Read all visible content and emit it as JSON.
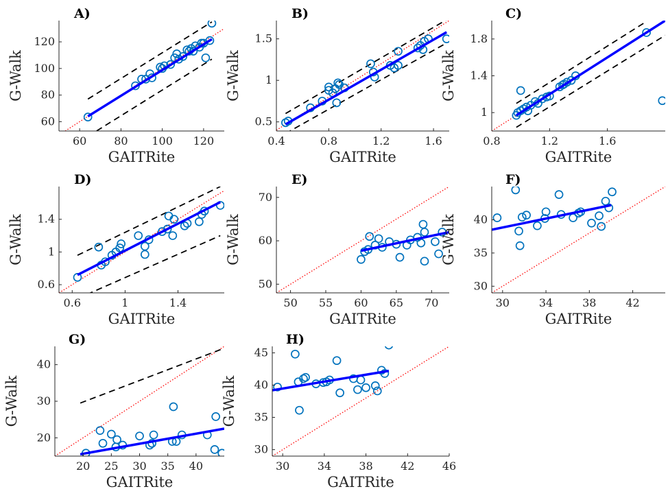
{
  "chart_data": [
    {
      "type": "scatter",
      "panel_label": "A)",
      "xlabel": "GAITRite",
      "ylabel": "G-Walk",
      "xlim": [
        50,
        130
      ],
      "ylim": [
        53,
        136
      ],
      "xticks": [
        60,
        80,
        100,
        120
      ],
      "xtick_labels": [
        "60",
        "80",
        "100",
        "120"
      ],
      "yticks": [
        60,
        80,
        100,
        120
      ],
      "ytick_labels": [
        "60",
        "80",
        "100",
        "120"
      ],
      "points": [
        [
          64,
          63.5
        ],
        [
          87,
          87
        ],
        [
          90,
          92
        ],
        [
          92,
          92
        ],
        [
          94,
          96
        ],
        [
          95,
          93
        ],
        [
          99,
          101
        ],
        [
          100,
          100
        ],
        [
          101,
          102
        ],
        [
          104,
          103
        ],
        [
          106,
          108
        ],
        [
          107,
          111
        ],
        [
          108,
          107
        ],
        [
          110,
          109
        ],
        [
          112,
          114
        ],
        [
          113,
          113
        ],
        [
          114,
          115
        ],
        [
          115,
          113
        ],
        [
          116,
          117
        ],
        [
          118,
          116
        ],
        [
          119,
          119
        ],
        [
          120,
          119
        ],
        [
          121,
          108
        ],
        [
          123,
          121
        ],
        [
          124,
          134
        ]
      ],
      "fit": [
        [
          64,
          64
        ],
        [
          124,
          122
        ]
      ],
      "identity": true,
      "loa": [
        [
          [
            64,
            77
          ],
          [
            124,
            135
          ]
        ],
        [
          [
            64,
            49
          ],
          [
            124,
            107
          ]
        ]
      ]
    },
    {
      "type": "scatter",
      "panel_label": "B)",
      "xlabel": "GAITRite",
      "ylabel": "G-Walk",
      "xlim": [
        0.4,
        1.72
      ],
      "ylim": [
        0.39,
        1.72
      ],
      "xticks": [
        0.4,
        0.8,
        1.2,
        1.6
      ],
      "xtick_labels": [
        "0.4",
        "0.8",
        "1.2",
        "1.6"
      ],
      "yticks": [
        0.5,
        1.0,
        1.5
      ],
      "ytick_labels": [
        "0.5",
        "1",
        "1.5"
      ],
      "points": [
        [
          0.47,
          0.49
        ],
        [
          0.49,
          0.51
        ],
        [
          0.66,
          0.67
        ],
        [
          0.75,
          0.75
        ],
        [
          0.8,
          0.88
        ],
        [
          0.8,
          0.92
        ],
        [
          0.83,
          0.85
        ],
        [
          0.85,
          0.9
        ],
        [
          0.86,
          0.73
        ],
        [
          0.87,
          0.97
        ],
        [
          0.88,
          0.95
        ],
        [
          0.92,
          0.91
        ],
        [
          1.12,
          1.2
        ],
        [
          1.14,
          1.1
        ],
        [
          1.15,
          1.04
        ],
        [
          1.27,
          1.18
        ],
        [
          1.3,
          1.15
        ],
        [
          1.33,
          1.35
        ],
        [
          1.33,
          1.18
        ],
        [
          1.48,
          1.39
        ],
        [
          1.5,
          1.42
        ],
        [
          1.52,
          1.37
        ],
        [
          1.53,
          1.47
        ],
        [
          1.56,
          1.5
        ],
        [
          1.7,
          1.5
        ]
      ],
      "fit": [
        [
          0.47,
          0.47
        ],
        [
          1.7,
          1.58
        ]
      ],
      "identity": true,
      "loa": [
        [
          [
            0.47,
            0.6
          ],
          [
            1.7,
            1.73
          ]
        ],
        [
          [
            0.47,
            0.36
          ],
          [
            1.7,
            1.45
          ]
        ]
      ]
    },
    {
      "type": "scatter",
      "panel_label": "C)",
      "xlabel": "GAITRite",
      "ylabel": "G-Walk",
      "xlim": [
        0.8,
        2.0
      ],
      "ylim": [
        0.8,
        2.0
      ],
      "xticks": [
        0.8,
        1.2,
        1.6
      ],
      "xtick_labels": [
        "0.8",
        "1.2",
        "1.6"
      ],
      "yticks": [
        1.0,
        1.4,
        1.8
      ],
      "ytick_labels": [
        "1",
        "1.4",
        "1.8"
      ],
      "points": [
        [
          0.97,
          0.97
        ],
        [
          0.98,
          1.0
        ],
        [
          1.0,
          1.24
        ],
        [
          1.0,
          1.02
        ],
        [
          1.02,
          1.04
        ],
        [
          1.04,
          1.06
        ],
        [
          1.05,
          1.02
        ],
        [
          1.07,
          1.08
        ],
        [
          1.1,
          1.12
        ],
        [
          1.12,
          1.1
        ],
        [
          1.15,
          1.15
        ],
        [
          1.18,
          1.17
        ],
        [
          1.2,
          1.18
        ],
        [
          1.27,
          1.28
        ],
        [
          1.29,
          1.3
        ],
        [
          1.3,
          1.31
        ],
        [
          1.32,
          1.33
        ],
        [
          1.35,
          1.35
        ],
        [
          1.38,
          1.4
        ],
        [
          1.87,
          1.87
        ],
        [
          1.98,
          1.13
        ]
      ],
      "fit": [
        [
          0.97,
          0.97
        ],
        [
          2.0,
          2.0
        ]
      ],
      "identity": true,
      "loa": [
        [
          [
            0.97,
            1.1
          ],
          [
            1.87,
            1.99
          ]
        ],
        [
          [
            0.97,
            0.84
          ],
          [
            2.0,
            1.84
          ]
        ]
      ]
    },
    {
      "type": "scatter",
      "panel_label": "D)",
      "xlabel": "GAITRite",
      "ylabel": "G-Walk",
      "xlim": [
        0.5,
        1.75
      ],
      "ylim": [
        0.5,
        1.8
      ],
      "xticks": [
        0.6,
        1.0,
        1.4
      ],
      "xtick_labels": [
        "0.6",
        "1",
        "1.4"
      ],
      "yticks": [
        0.6,
        1.0,
        1.4
      ],
      "ytick_labels": [
        "0.6",
        "1",
        "1.4"
      ],
      "points": [
        [
          0.64,
          0.69
        ],
        [
          0.8,
          1.06
        ],
        [
          0.82,
          0.84
        ],
        [
          0.85,
          0.88
        ],
        [
          0.9,
          0.96
        ],
        [
          0.93,
          1.0
        ],
        [
          0.96,
          1.05
        ],
        [
          0.97,
          1.1
        ],
        [
          1.1,
          1.2
        ],
        [
          1.15,
          0.97
        ],
        [
          1.15,
          1.07
        ],
        [
          1.18,
          1.15
        ],
        [
          1.28,
          1.25
        ],
        [
          1.32,
          1.28
        ],
        [
          1.33,
          1.44
        ],
        [
          1.36,
          1.2
        ],
        [
          1.37,
          1.4
        ],
        [
          1.45,
          1.32
        ],
        [
          1.47,
          1.35
        ],
        [
          1.56,
          1.37
        ],
        [
          1.58,
          1.46
        ],
        [
          1.6,
          1.5
        ],
        [
          1.72,
          1.57
        ]
      ],
      "fit": [
        [
          0.64,
          0.72
        ],
        [
          1.72,
          1.61
        ]
      ],
      "identity": true,
      "loa": [
        [
          [
            0.64,
            0.96
          ],
          [
            1.72,
            1.8
          ]
        ],
        [
          [
            0.64,
            0.43
          ],
          [
            1.72,
            1.2
          ]
        ]
      ]
    },
    {
      "type": "scatter",
      "panel_label": "E)",
      "xlabel": "GAITRite",
      "ylabel": "G-Walk",
      "xlim": [
        48,
        72.5
      ],
      "ylim": [
        48,
        72.5
      ],
      "xticks": [
        50,
        55,
        60,
        65,
        70
      ],
      "xtick_labels": [
        "50",
        "55",
        "60",
        "65",
        "70"
      ],
      "yticks": [
        50,
        60,
        70
      ],
      "ytick_labels": [
        "50",
        "60",
        "70"
      ],
      "points": [
        [
          60,
          55.7
        ],
        [
          60.5,
          57.5
        ],
        [
          61,
          58
        ],
        [
          61.2,
          61
        ],
        [
          62,
          59
        ],
        [
          62.5,
          60.5
        ],
        [
          63,
          58.5
        ],
        [
          64,
          59.8
        ],
        [
          65,
          59.2
        ],
        [
          65.5,
          56.2
        ],
        [
          66.5,
          59
        ],
        [
          67,
          60.2
        ],
        [
          68,
          60.8
        ],
        [
          68.5,
          59.5
        ],
        [
          68.8,
          63.8
        ],
        [
          69,
          55.3
        ],
        [
          69,
          62
        ],
        [
          70.5,
          59.8
        ],
        [
          71,
          57
        ],
        [
          71.5,
          62
        ]
      ],
      "fit": [
        [
          60,
          57.7
        ],
        [
          72.5,
          62
        ]
      ],
      "identity": true,
      "loa": []
    },
    {
      "type": "scatter",
      "panel_label": "F)",
      "xlabel": "GAITRite",
      "ylabel": "G-Walk",
      "xlim": [
        29,
        45
      ],
      "ylim": [
        29,
        45
      ],
      "xticks": [
        30,
        34,
        38,
        42
      ],
      "xtick_labels": [
        "30",
        "34",
        "38",
        "42"
      ],
      "yticks": [
        30,
        35,
        40
      ],
      "ytick_labels": [
        "30",
        "35",
        "40"
      ],
      "points": [
        [
          29.5,
          40.3
        ],
        [
          31.2,
          44.5
        ],
        [
          31.5,
          38.3
        ],
        [
          31.6,
          36.1
        ],
        [
          31.8,
          40.4
        ],
        [
          32.2,
          40.7
        ],
        [
          33.2,
          39.1
        ],
        [
          33.9,
          40.2
        ],
        [
          34,
          41.2
        ],
        [
          35.2,
          43.8
        ],
        [
          35.4,
          40.8
        ],
        [
          36.5,
          40.3
        ],
        [
          37,
          41
        ],
        [
          37.2,
          41.2
        ],
        [
          38.2,
          39.5
        ],
        [
          38.9,
          40.6
        ],
        [
          39.1,
          39
        ],
        [
          39.5,
          42.8
        ],
        [
          39.8,
          41.8
        ],
        [
          40.1,
          44.2
        ]
      ],
      "fit": [
        [
          29,
          38.5
        ],
        [
          40,
          42.2
        ]
      ],
      "identity": true,
      "loa": []
    },
    {
      "type": "scatter",
      "panel_label": "G)",
      "xlabel": "GAITRite",
      "ylabel": "G-Walk",
      "xlim": [
        15,
        45
      ],
      "ylim": [
        15,
        45
      ],
      "xticks": [
        20,
        25,
        30,
        35,
        40
      ],
      "xtick_labels": [
        "20",
        "25",
        "30",
        "35",
        "40"
      ],
      "yticks": [
        20,
        30,
        40
      ],
      "ytick_labels": [
        "20",
        "30",
        "40"
      ],
      "points": [
        [
          20.5,
          15.8
        ],
        [
          23,
          22
        ],
        [
          23.5,
          18.5
        ],
        [
          25,
          21
        ],
        [
          25.8,
          17.5
        ],
        [
          26,
          19.5
        ],
        [
          27,
          18
        ],
        [
          30,
          20.5
        ],
        [
          31.8,
          18
        ],
        [
          32.2,
          18.5
        ],
        [
          32.5,
          20.8
        ],
        [
          35.8,
          19
        ],
        [
          36,
          28.5
        ],
        [
          36.5,
          19
        ],
        [
          37.5,
          20.8
        ],
        [
          42,
          20.8
        ],
        [
          43.3,
          16.8
        ],
        [
          43.5,
          25.8
        ],
        [
          44.6,
          15.8
        ]
      ],
      "fit": [
        [
          19.5,
          15.5
        ],
        [
          45,
          22.5
        ]
      ],
      "identity": true,
      "loa": [
        [
          [
            19.5,
            29.5
          ],
          [
            45,
            44.5
          ]
        ]
      ]
    },
    {
      "type": "scatter",
      "panel_label": "H)",
      "xlabel": "GAITRite",
      "ylabel": "G-Walk",
      "xlim": [
        29,
        46
      ],
      "ylim": [
        29,
        46
      ],
      "xticks": [
        30,
        34,
        38,
        42,
        46
      ],
      "xtick_labels": [
        "30",
        "34",
        "38",
        "42",
        "46"
      ],
      "yticks": [
        30,
        35,
        40,
        45
      ],
      "ytick_labels": [
        "30",
        "35",
        "40",
        "45"
      ],
      "points": [
        [
          29.5,
          39.7
        ],
        [
          31.2,
          44.8
        ],
        [
          31.5,
          40.5
        ],
        [
          31.6,
          36.1
        ],
        [
          32,
          41
        ],
        [
          32.2,
          41.2
        ],
        [
          33.2,
          40.2
        ],
        [
          33.9,
          40.4
        ],
        [
          34.2,
          40.5
        ],
        [
          34.5,
          40.8
        ],
        [
          35.2,
          43.8
        ],
        [
          35.5,
          38.8
        ],
        [
          36.8,
          41
        ],
        [
          37.2,
          39.3
        ],
        [
          37.5,
          40.8
        ],
        [
          38,
          39.6
        ],
        [
          38.9,
          39.9
        ],
        [
          39.1,
          39.1
        ],
        [
          39.5,
          42.3
        ],
        [
          39.8,
          41.8
        ],
        [
          40.2,
          46.2
        ]
      ],
      "fit": [
        [
          29,
          39.2
        ],
        [
          40.2,
          42.2
        ]
      ],
      "identity": true,
      "loa": []
    }
  ]
}
